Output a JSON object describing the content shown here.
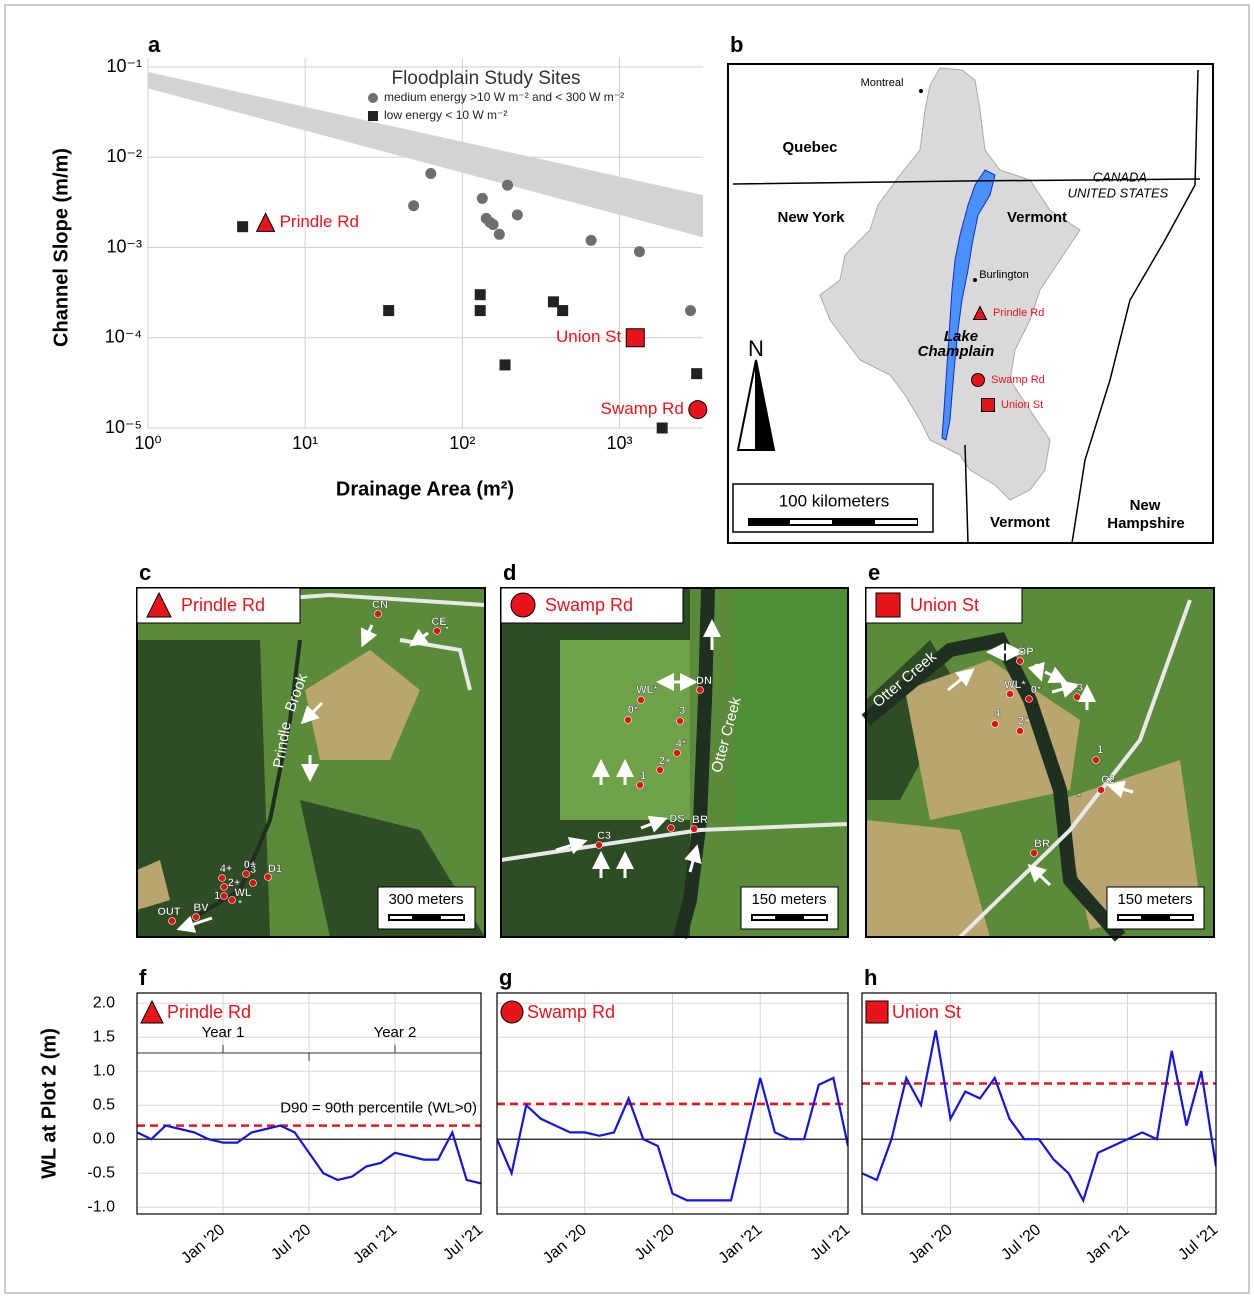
{
  "chart_data": [
    {
      "type": "scatter",
      "panel": "a",
      "title": "Floodplain Study Sites",
      "xlabel": "Drainage Area (m²)",
      "ylabel": "Channel Slope (m/m)",
      "xscale": "log",
      "yscale": "log",
      "xlim": [
        1,
        3400
      ],
      "ylim": [
        1e-05,
        0.1
      ],
      "xticks": [
        {
          "value": 1,
          "label": "10⁰"
        },
        {
          "value": 10,
          "label": "10¹"
        },
        {
          "value": 100,
          "label": "10²"
        },
        {
          "value": 1000,
          "label": "10³"
        }
      ],
      "yticks": [
        {
          "value": 1e-05,
          "label": "10⁻⁵"
        },
        {
          "value": 0.0001,
          "label": "10⁻⁴"
        },
        {
          "value": 0.001,
          "label": "10⁻³"
        },
        {
          "value": 0.01,
          "label": "10⁻²"
        },
        {
          "value": 0.1,
          "label": "10⁻¹"
        }
      ],
      "grid": true,
      "band": {
        "color": "#d3d3d3",
        "x": [
          1,
          3400
        ],
        "upper": [
          0.088,
          0.0038
        ],
        "lower": [
          0.058,
          0.0013
        ]
      },
      "series": [
        {
          "name": "medium energy >10 W m⁻² and < 300 W m⁻²",
          "marker": "circle",
          "color": "#6e6e6e",
          "legend": true,
          "x": [
            49,
            63,
            134,
            194,
            142,
            150,
            157,
            172,
            224,
            660,
            1340,
            2830
          ],
          "values": [
            0.0029,
            0.0066,
            0.0035,
            0.0049,
            0.0021,
            0.0019,
            0.0018,
            0.0014,
            0.0023,
            0.0012,
            0.0009,
            0.0002
          ]
        },
        {
          "name": "low energy < 10 W m⁻²",
          "marker": "square",
          "color": "#222222",
          "legend": true,
          "x": [
            4,
            34,
            130,
            130,
            380,
            435,
            187,
            3100,
            1870
          ],
          "values": [
            0.0017,
            0.0002,
            0.0003,
            0.0002,
            0.00025,
            0.0002,
            5e-05,
            4e-05,
            1e-05
          ]
        },
        {
          "name": "Prindle Rd",
          "marker": "triangle",
          "color": "#e8141c",
          "legend": false,
          "x": [
            5.6
          ],
          "values": [
            0.0019
          ]
        },
        {
          "name": "Union St",
          "marker": "square",
          "color": "#e8141c",
          "legend": false,
          "x": [
            1260
          ],
          "values": [
            0.0001
          ]
        },
        {
          "name": "Swamp Rd",
          "marker": "circle",
          "color": "#e8141c",
          "legend": false,
          "x": [
            3150
          ],
          "values": [
            1.6e-05
          ]
        }
      ]
    },
    {
      "type": "line",
      "panel": "f",
      "title": "Prindle Rd",
      "marker": "triangle",
      "marker_color": "#e8141c",
      "ylabel": "WL at Plot 2 (m)",
      "x": [
        "2019-07",
        "2019-08",
        "2019-09",
        "2019-10",
        "2019-11",
        "2019-12",
        "2020-01",
        "2020-02",
        "2020-03",
        "2020-04",
        "2020-05",
        "2020-06",
        "2020-07",
        "2020-08",
        "2020-09",
        "2020-10",
        "2020-11",
        "2020-12",
        "2021-01",
        "2021-02",
        "2021-03",
        "2021-04",
        "2021-05",
        "2021-06",
        "2021-07"
      ],
      "values": [
        0.1,
        0.0,
        0.2,
        0.15,
        0.1,
        0.0,
        -0.05,
        -0.05,
        0.1,
        0.15,
        0.2,
        0.1,
        -0.2,
        -0.5,
        -0.6,
        -0.55,
        -0.4,
        -0.35,
        -0.2,
        -0.25,
        -0.3,
        -0.3,
        0.1,
        -0.6,
        -0.65
      ],
      "color": "#1515e0",
      "xlim": [
        "2019-07",
        "2021-07"
      ],
      "xticks": [
        {
          "value": "2020-01",
          "label": "Jan '20"
        },
        {
          "value": "2020-07",
          "label": "Jul '20"
        },
        {
          "value": "2021-01",
          "label": "Jan '21"
        },
        {
          "value": "2021-07",
          "label": "Jul '21"
        }
      ],
      "ylim": [
        -1.1,
        2.15
      ],
      "yticks": [
        {
          "value": -1,
          "label": "-1.0"
        },
        -0.5,
        {
          "value": 0,
          "label": "0.0"
        },
        0.5,
        {
          "value": 1,
          "label": "1.0"
        },
        1.5,
        {
          "value": 2,
          "label": "2.0"
        }
      ],
      "ytick_labels": true,
      "grid": true,
      "reference_line": {
        "value": 0.2,
        "color": "#e8141c",
        "label": "D90 = 90th percentile (WL>0)"
      },
      "annotations": [
        "Year 1",
        "Year 2"
      ]
    },
    {
      "type": "line",
      "panel": "g",
      "title": "Swamp Rd",
      "marker": "circle",
      "marker_color": "#e8141c",
      "x": [
        "2019-07",
        "2019-08",
        "2019-09",
        "2019-10",
        "2019-11",
        "2019-12",
        "2020-01",
        "2020-02",
        "2020-03",
        "2020-04",
        "2020-05",
        "2020-06",
        "2020-07",
        "2020-08",
        "2020-09",
        "2020-10",
        "2020-11",
        "2020-12",
        "2021-01",
        "2021-02",
        "2021-03",
        "2021-04",
        "2021-05",
        "2021-06",
        "2021-07"
      ],
      "values": [
        0.0,
        -0.5,
        0.5,
        0.3,
        0.2,
        0.1,
        0.1,
        0.05,
        0.1,
        0.6,
        0.0,
        -0.1,
        -0.8,
        -0.9,
        -0.9,
        -0.9,
        -0.9,
        0.0,
        0.9,
        0.1,
        0.0,
        0.0,
        0.8,
        0.9,
        -0.1
      ],
      "color": "#1515e0",
      "xlim": [
        "2019-07",
        "2021-07"
      ],
      "xticks": [
        {
          "value": "2020-01",
          "label": "Jan '20"
        },
        {
          "value": "2020-07",
          "label": "Jul '20"
        },
        {
          "value": "2021-01",
          "label": "Jan '21"
        },
        {
          "value": "2021-07",
          "label": "Jul '21"
        }
      ],
      "ylim": [
        -1.1,
        2.15
      ],
      "yticks": [
        -1,
        -0.5,
        0,
        0.5,
        1,
        1.5,
        2
      ],
      "ytick_labels": false,
      "grid": true,
      "reference_line": {
        "value": 0.52,
        "color": "#e8141c"
      }
    },
    {
      "type": "line",
      "panel": "h",
      "title": "Union St",
      "marker": "square",
      "marker_color": "#e8141c",
      "x": [
        "2019-07",
        "2019-08",
        "2019-09",
        "2019-10",
        "2019-11",
        "2019-12",
        "2020-01",
        "2020-02",
        "2020-03",
        "2020-04",
        "2020-05",
        "2020-06",
        "2020-07",
        "2020-08",
        "2020-09",
        "2020-10",
        "2020-11",
        "2020-12",
        "2021-01",
        "2021-02",
        "2021-03",
        "2021-04",
        "2021-05",
        "2021-06",
        "2021-07"
      ],
      "values": [
        -0.5,
        -0.6,
        0.0,
        0.9,
        0.5,
        1.6,
        0.3,
        0.7,
        0.6,
        0.9,
        0.3,
        0.0,
        0.0,
        -0.3,
        -0.5,
        -0.9,
        -0.2,
        -0.1,
        0.0,
        0.1,
        0.0,
        1.3,
        0.2,
        1.0,
        -0.4
      ],
      "color": "#1515e0",
      "xlim": [
        "2019-07",
        "2021-07"
      ],
      "xticks": [
        {
          "value": "2020-01",
          "label": "Jan '20"
        },
        {
          "value": "2020-07",
          "label": "Jul '20"
        },
        {
          "value": "2021-01",
          "label": "Jan '21"
        },
        {
          "value": "2021-07",
          "label": "Jul '21"
        }
      ],
      "ylim": [
        -1.1,
        2.15
      ],
      "yticks": [
        -1,
        -0.5,
        0,
        0.5,
        1,
        1.5,
        2
      ],
      "ytick_labels": false,
      "grid": true,
      "reference_line": {
        "value": 0.82,
        "color": "#e8141c"
      }
    }
  ],
  "map": {
    "panel": "b",
    "labels": [
      "Montreal",
      "Quebec",
      "CANADA",
      "UNITED STATES",
      "New York",
      "Vermont",
      "Burlington",
      "Lake",
      "Champlain",
      "Vermont",
      "New",
      "Hampshire",
      "N"
    ],
    "sites": [
      {
        "name": "Prindle Rd",
        "marker": "triangle"
      },
      {
        "name": "Swamp Rd",
        "marker": "circle"
      },
      {
        "name": "Union St",
        "marker": "square"
      }
    ],
    "scale": "100 kilometers"
  },
  "photos": [
    {
      "panel": "c",
      "title": "Prindle Rd",
      "marker": "triangle",
      "streams": [
        "Prindle",
        "Brook"
      ],
      "scale": "300 meters",
      "points": [
        "CN",
        "CE",
        "3",
        "4+",
        "0+",
        "2+",
        "D1",
        "1",
        "WL",
        "BV",
        "OUT",
        "*",
        "*"
      ]
    },
    {
      "panel": "d",
      "title": "Swamp Rd",
      "marker": "circle",
      "streams": [
        "Otter Creek"
      ],
      "scale": "150 meters",
      "points": [
        "WL*",
        "DN",
        "3",
        "0*",
        "4*",
        "2+",
        "1",
        "DS",
        "BR",
        "C3"
      ]
    },
    {
      "panel": "e",
      "title": "Union St",
      "marker": "square",
      "streams": [
        "Otter Creek"
      ],
      "scale": "150 meters",
      "points": [
        "DP",
        "WL*",
        "0*",
        "3",
        "4",
        "2+",
        "1",
        "C2",
        "*",
        "BR"
      ]
    }
  ]
}
